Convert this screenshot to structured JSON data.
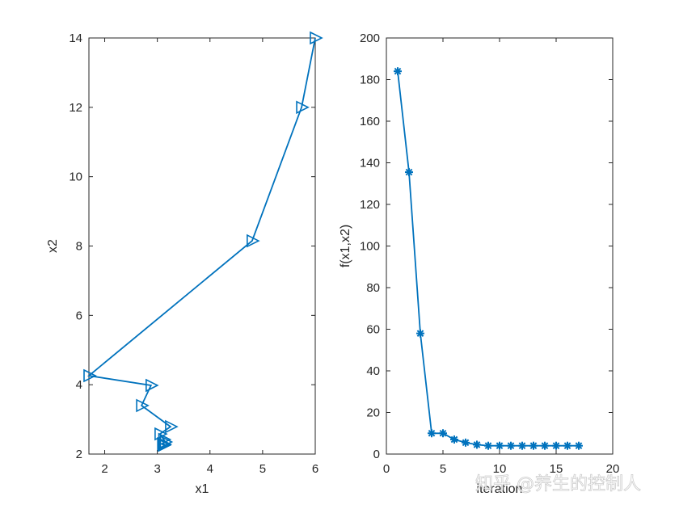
{
  "chart_data": [
    {
      "type": "line",
      "marker": "triangle-right",
      "title": "",
      "xlabel": "x1",
      "ylabel": "x2",
      "xlim": [
        1.7,
        6
      ],
      "ylim": [
        2,
        14
      ],
      "xticks": [
        2,
        3,
        4,
        5,
        6
      ],
      "yticks": [
        2,
        4,
        6,
        8,
        10,
        12,
        14
      ],
      "grid": false,
      "color": "#0072BD",
      "series": [
        {
          "name": "path",
          "x": [
            6.0,
            5.74,
            4.8,
            1.7,
            2.88,
            2.7,
            3.25,
            3.05,
            3.12,
            3.15,
            3.1,
            3.13,
            3.11,
            3.12,
            3.12,
            3.12,
            3.12
          ],
          "y": [
            14.0,
            12.0,
            8.15,
            4.26,
            3.98,
            3.4,
            2.79,
            2.58,
            2.42,
            2.35,
            2.3,
            2.28,
            2.27,
            2.26,
            2.26,
            2.26,
            2.26
          ]
        }
      ]
    },
    {
      "type": "line",
      "marker": "asterisk",
      "title": "",
      "xlabel": "iteration",
      "ylabel": "f(x1,x2)",
      "xlim": [
        0,
        20
      ],
      "ylim": [
        0,
        200
      ],
      "xticks": [
        0,
        5,
        10,
        15,
        20
      ],
      "yticks": [
        0,
        20,
        40,
        60,
        80,
        100,
        120,
        140,
        160,
        180,
        200
      ],
      "grid": false,
      "color": "#0072BD",
      "series": [
        {
          "name": "objective",
          "x": [
            1,
            2,
            3,
            4,
            5,
            6,
            7,
            8,
            9,
            10,
            11,
            12,
            13,
            14,
            15,
            16,
            17
          ],
          "y": [
            184,
            135.5,
            58,
            10,
            10,
            7,
            5.5,
            4.5,
            4,
            4,
            4,
            4,
            4,
            4,
            4,
            4,
            4
          ]
        }
      ]
    }
  ],
  "watermark": "知乎 @养生的控制人"
}
